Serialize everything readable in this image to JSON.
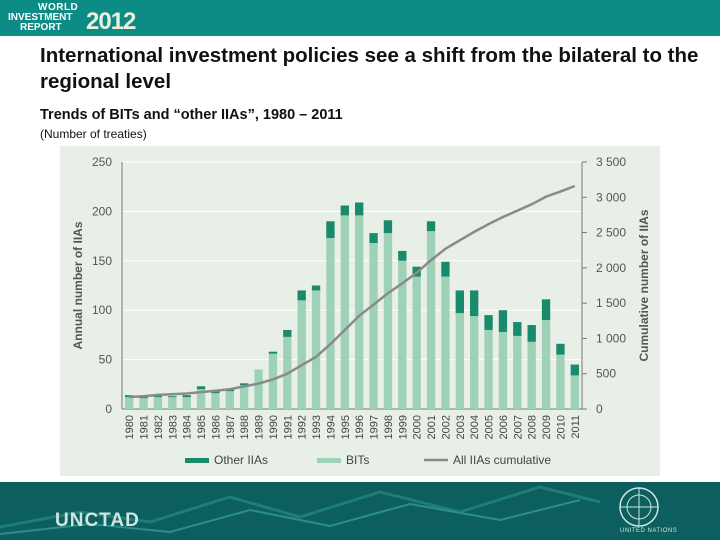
{
  "header": {
    "logo_line1": "WORLD",
    "logo_line2": "INVESTMENT",
    "logo_line3": "REPORT",
    "logo_year": "2012",
    "title": "International investment policies see a shift from the bilateral to the regional level"
  },
  "footer": {
    "brand": "UNCTAD",
    "emblem_text": "UNITED NATIONS"
  },
  "colors": {
    "header_bar": "#0d8c86",
    "other_iias": "#1a8a6c",
    "bits": "#9fd1b7",
    "cumulative_line": "#8a8a8a",
    "chart_background": "#e8efe7",
    "footer": "#0d5e5e"
  },
  "chart_data": {
    "type": "bar",
    "title": "Trends of BITs and “other IIAs”, 1980 – 2011",
    "subtitle": "(Number of treaties)",
    "ylabel": "Annual number of IIAs",
    "y2label": "Cumulative number of IIAs",
    "ylim": [
      0,
      250
    ],
    "y2lim": [
      0,
      3500
    ],
    "yticks": [
      "0",
      "50",
      "100",
      "150",
      "200",
      "250"
    ],
    "y2ticks": [
      "0",
      "500",
      "1 000",
      "1 500",
      "2 000",
      "2 500",
      "3 000",
      "3 500"
    ],
    "grid": true,
    "legend_position": "bottom",
    "categories": [
      "1980",
      "1981",
      "1982",
      "1983",
      "1984",
      "1985",
      "1986",
      "1987",
      "1988",
      "1989",
      "1990",
      "1991",
      "1992",
      "1993",
      "1994",
      "1995",
      "1996",
      "1997",
      "1998",
      "1999",
      "2000",
      "2001",
      "2002",
      "2003",
      "2004",
      "2005",
      "2006",
      "2007",
      "2008",
      "2009",
      "2010",
      "2011"
    ],
    "series": [
      {
        "name": "BITs",
        "values": [
          12,
          11,
          12,
          12,
          12,
          20,
          16,
          18,
          24,
          40,
          56,
          73,
          110,
          120,
          173,
          196,
          196,
          168,
          178,
          150,
          134,
          180,
          134,
          97,
          94,
          80,
          78,
          74,
          68,
          90,
          55,
          34
        ]
      },
      {
        "name": "Other IIAs",
        "values": [
          2,
          2,
          2,
          1,
          2,
          3,
          2,
          2,
          2,
          0,
          2,
          7,
          10,
          5,
          17,
          10,
          13,
          10,
          13,
          10,
          10,
          10,
          15,
          23,
          26,
          15,
          22,
          14,
          17,
          21,
          11,
          11
        ]
      },
      {
        "name": "All IIAs cumulative",
        "axis": "secondary",
        "values": [
          170,
          180,
          200,
          210,
          220,
          240,
          260,
          280,
          320,
          360,
          420,
          500,
          620,
          740,
          920,
          1120,
          1320,
          1480,
          1640,
          1780,
          1930,
          2110,
          2270,
          2390,
          2510,
          2620,
          2720,
          2810,
          2900,
          3010,
          3080,
          3160
        ]
      }
    ],
    "legend": [
      "Other IIAs",
      "BITs",
      "All IIAs cumulative"
    ]
  }
}
